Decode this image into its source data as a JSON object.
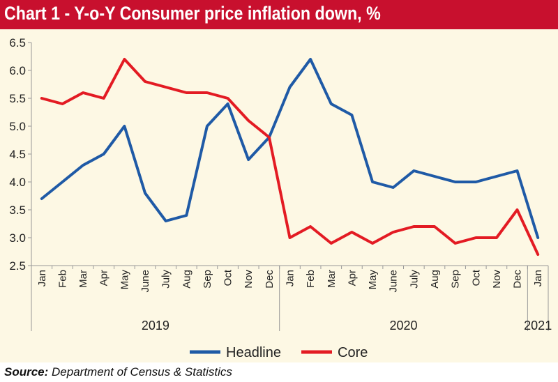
{
  "title": "Chart 1 - Y-o-Y Consumer price inflation down, %",
  "source": {
    "label": "Source:",
    "text": "Department of Census & Statistics"
  },
  "colors": {
    "title_bar": "#c8102e",
    "background": "#fdf8e4",
    "headline": "#1f5aa6",
    "core": "#e31b23"
  },
  "chart_data": {
    "type": "line",
    "categories": [
      "Jan",
      "Feb",
      "Mar",
      "Apr",
      "May",
      "June",
      "July",
      "Aug",
      "Sep",
      "Oct",
      "Nov",
      "Dec",
      "Jan",
      "Feb",
      "Mar",
      "Apr",
      "May",
      "June",
      "July",
      "Aug",
      "Sep",
      "Oct",
      "Nov",
      "Dec",
      "Jan"
    ],
    "years": [
      {
        "label": "2019",
        "start": 0,
        "end": 11
      },
      {
        "label": "2020",
        "start": 12,
        "end": 23
      },
      {
        "label": "2021",
        "start": 24,
        "end": 24
      }
    ],
    "series": [
      {
        "name": "Headline",
        "color": "#1f5aa6",
        "values": [
          3.7,
          4.0,
          4.3,
          4.5,
          5.0,
          3.8,
          3.3,
          3.4,
          5.0,
          5.4,
          4.4,
          4.8,
          5.7,
          6.2,
          5.4,
          5.2,
          4.0,
          3.9,
          4.2,
          4.1,
          4.0,
          4.0,
          4.1,
          4.2,
          3.0
        ]
      },
      {
        "name": "Core",
        "color": "#e31b23",
        "values": [
          5.5,
          5.4,
          5.6,
          5.5,
          6.2,
          5.8,
          5.7,
          5.6,
          5.6,
          5.5,
          5.1,
          4.8,
          3.0,
          3.2,
          2.9,
          3.1,
          2.9,
          3.1,
          3.2,
          3.2,
          2.9,
          3.0,
          3.0,
          3.5,
          2.7
        ]
      }
    ],
    "ylim": [
      2.5,
      6.5
    ],
    "yticks": [
      "2.5",
      "3.0",
      "3.5",
      "4.0",
      "4.5",
      "5.0",
      "5.5",
      "6.0",
      "6.5"
    ],
    "grid": false,
    "legend": "bottom"
  }
}
